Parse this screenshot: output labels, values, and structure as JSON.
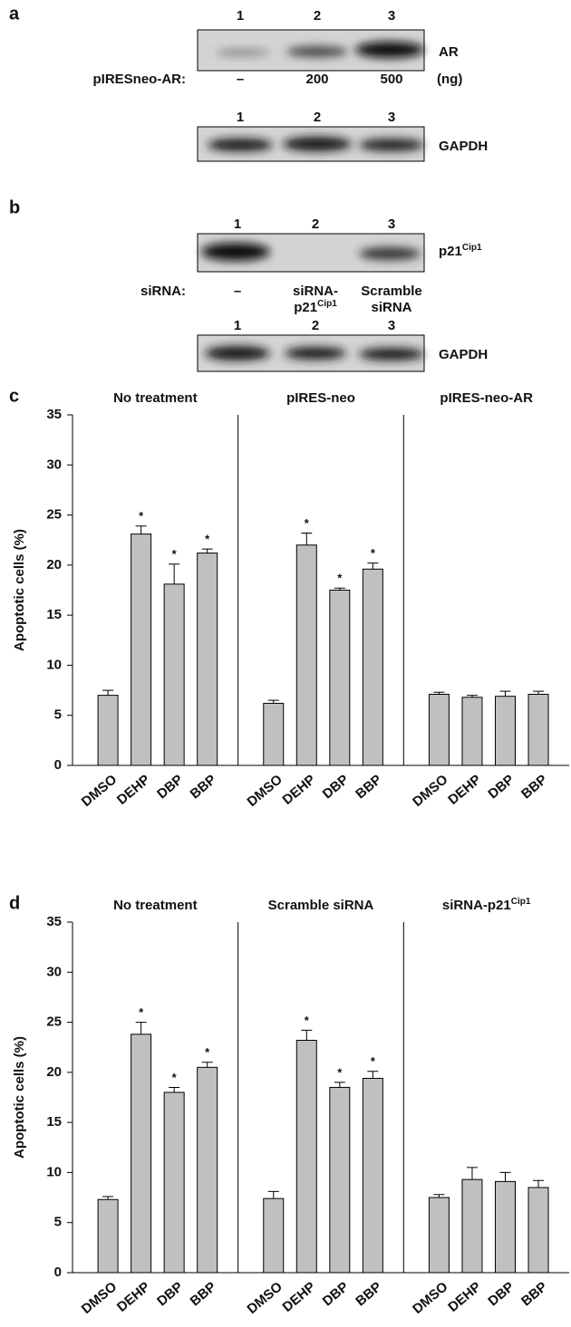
{
  "panel_a": {
    "label": "a",
    "lanes": [
      "1",
      "2",
      "3"
    ],
    "target": "AR",
    "row_label": "pIRESneo-AR:",
    "doses": [
      "–",
      "200",
      "500"
    ],
    "unit": "(ng)",
    "loading_lanes": [
      "1",
      "2",
      "3"
    ],
    "loading": "GAPDH"
  },
  "panel_b": {
    "label": "b",
    "lanes": [
      "1",
      "2",
      "3"
    ],
    "target": {
      "base": "p21",
      "sup": "Cip1"
    },
    "row_label": "siRNA:",
    "treatment_1": "–",
    "treatment_2": {
      "line1": "siRNA-",
      "base": "p21",
      "sup": "Cip1"
    },
    "treatment_3": {
      "line1": "Scramble",
      "line2": "siRNA"
    },
    "loading_lanes": [
      "1",
      "2",
      "3"
    ],
    "loading": "GAPDH"
  },
  "chart_data": [
    {
      "type": "bar",
      "panel": "c",
      "y_label": "Apoptotic cells (%)",
      "categories": [
        "DMSO",
        "DEHP",
        "DBP",
        "BBP"
      ],
      "color": "#c0c0c0",
      "series": [
        {
          "name": "No treatment",
          "values": [
            7.0,
            23.1,
            18.1,
            21.2
          ],
          "errors": [
            0.5,
            0.8,
            2.0,
            0.4
          ],
          "marks": [
            null,
            "*",
            "*",
            "*"
          ]
        },
        {
          "name": "pIRES-neo",
          "values": [
            6.2,
            22.0,
            17.5,
            19.6
          ],
          "errors": [
            0.3,
            1.2,
            0.2,
            0.6
          ],
          "marks": [
            null,
            "*",
            "*",
            "*"
          ]
        },
        {
          "name": "pIRES-neo-AR",
          "values": [
            7.1,
            6.8,
            6.9,
            7.1
          ],
          "errors": [
            0.2,
            0.2,
            0.5,
            0.3
          ]
        }
      ],
      "ylim": [
        0,
        35
      ],
      "yticks": [
        0,
        5,
        10,
        15,
        20,
        25,
        30,
        35
      ]
    },
    {
      "type": "bar",
      "panel": "d",
      "y_label": "Apoptotic cells (%)",
      "categories": [
        "DMSO",
        "DEHP",
        "DBP",
        "BBP"
      ],
      "color": "#c0c0c0",
      "series": [
        {
          "name": "No treatment",
          "values": [
            7.3,
            23.8,
            18.0,
            20.5
          ],
          "errors": [
            0.3,
            1.2,
            0.5,
            0.5
          ],
          "marks": [
            null,
            "*",
            "*",
            "*"
          ]
        },
        {
          "name": "Scramble siRNA",
          "values": [
            7.4,
            23.2,
            18.5,
            19.4
          ],
          "errors": [
            0.7,
            1.0,
            0.5,
            0.7
          ],
          "marks": [
            null,
            "*",
            "*",
            "*"
          ]
        },
        {
          "name": "siRNA-p21",
          "name_sup": "Cip1",
          "values": [
            7.5,
            9.3,
            9.1,
            8.5
          ],
          "errors": [
            0.3,
            1.2,
            0.9,
            0.7
          ]
        }
      ],
      "ylim": [
        0,
        35
      ],
      "yticks": [
        0,
        5,
        10,
        15,
        20,
        25,
        30,
        35
      ]
    }
  ]
}
